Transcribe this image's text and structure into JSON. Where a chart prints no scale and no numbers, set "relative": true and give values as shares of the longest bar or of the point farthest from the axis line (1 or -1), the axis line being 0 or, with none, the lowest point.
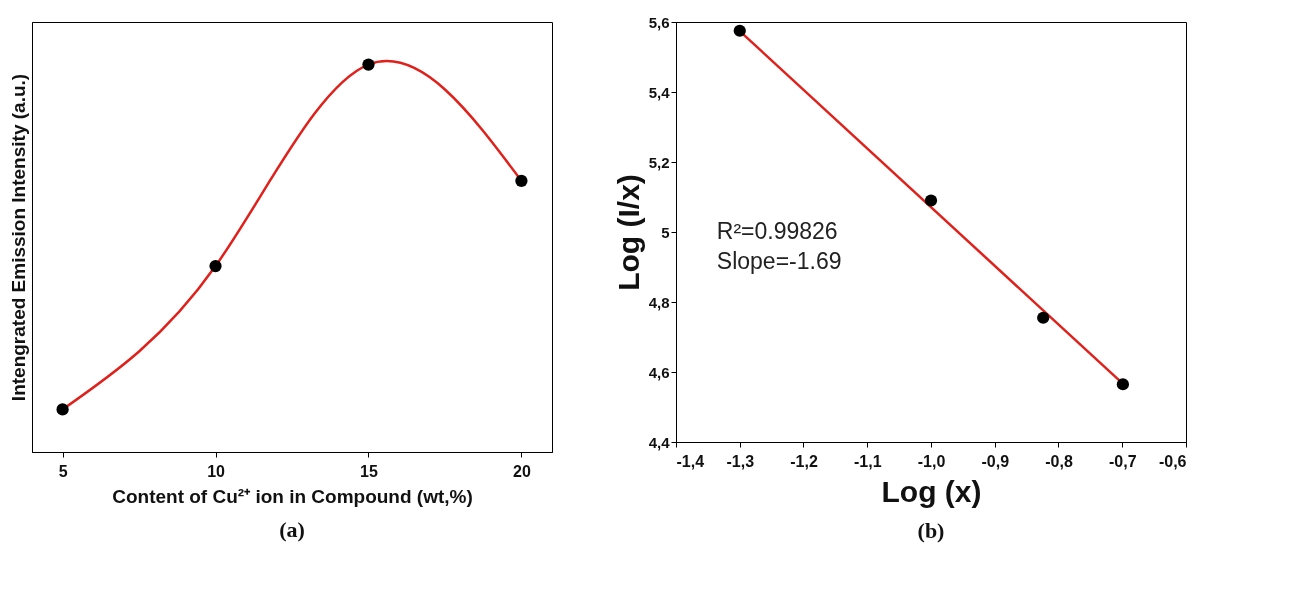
{
  "chart_data": [
    {
      "type": "scatter",
      "title": "(a)",
      "xlabel": "Content of Cu²⁺ ion in Compound (wt,%)",
      "ylabel": "Intengrated Emission Intensity (a.u.)",
      "relative": true,
      "x": [
        5,
        10,
        15,
        20
      ],
      "xlim": [
        4,
        21
      ],
      "xticks": [
        5,
        10,
        15,
        20
      ],
      "series": [
        {
          "type": "line",
          "color": "#e0201b",
          "values": [
            0.11,
            0.48,
            1,
            0.7
          ]
        },
        {
          "type": "scatter",
          "color": "#000000",
          "values": [
            0.11,
            0.48,
            1,
            0.7
          ]
        }
      ]
    },
    {
      "type": "scatter",
      "title": "(b)",
      "xlabel": "Log (x)",
      "ylabel": "Log (I/x)",
      "x": [
        -1.3,
        -1.0,
        -0.824,
        -0.699
      ],
      "xlim": [
        -1.4,
        -0.6
      ],
      "xticks": [
        {
          "value": -1.4,
          "label": "-1,4"
        },
        {
          "value": -1.3,
          "label": "-1,3"
        },
        {
          "value": -1.2,
          "label": "-1,2"
        },
        {
          "value": -1.1,
          "label": "-1,1"
        },
        {
          "value": -1.0,
          "label": "-1,0"
        },
        {
          "value": -0.9,
          "label": "-0,9"
        },
        {
          "value": -0.8,
          "label": "-0,8"
        },
        {
          "value": -0.7,
          "label": "-0,7"
        },
        {
          "value": -0.6,
          "label": "-0,6"
        }
      ],
      "ylim": [
        4.4,
        5.6
      ],
      "yticks": [
        {
          "value": 4.4,
          "label": "4,4"
        },
        {
          "value": 4.6,
          "label": "4,6"
        },
        {
          "value": 4.8,
          "label": "4,8"
        },
        5,
        {
          "value": 5.2,
          "label": "5,2"
        },
        {
          "value": 5.4,
          "label": "5,4"
        },
        {
          "value": 5.6,
          "label": "5,6"
        }
      ],
      "annotations": [
        "R²=0.99826",
        "Slope=-1.69"
      ],
      "series": [
        {
          "type": "line",
          "color": "#e0201b",
          "x": [
            -1.3,
            -0.7
          ],
          "values": [
            5.574,
            4.568
          ]
        },
        {
          "type": "scatter",
          "color": "#000000",
          "values": [
            5.575,
            5.09,
            4.755,
            4.565
          ]
        }
      ]
    }
  ]
}
